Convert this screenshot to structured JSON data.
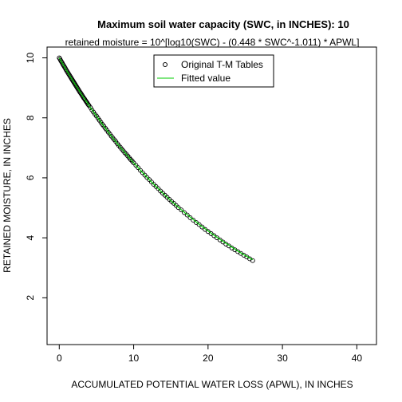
{
  "chart_data": {
    "type": "scatter",
    "title": "Maximum soil water capacity (SWC, in INCHES): 10",
    "subtitle": "retained moisture = 10^[log10(SWC) - (0.448 * SWC^-1.011) * APWL]",
    "xlabel": "ACCUMULATED POTENTIAL WATER LOSS (APWL), IN INCHES",
    "ylabel": "RETAINED MOISTURE, IN INCHES",
    "xlim": [
      -1.64,
      42.64
    ],
    "ylim": [
      0.44,
      10.36
    ],
    "xticks": [
      0,
      10,
      20,
      30,
      40
    ],
    "yticks": [
      2,
      4,
      6,
      8,
      10
    ],
    "legend_position": "top-center",
    "series": [
      {
        "name": "Original T-M Tables",
        "kind": "points",
        "color": "#000000",
        "x": [
          0,
          0.1,
          0.2,
          0.3,
          0.4,
          0.5,
          0.6,
          0.7,
          0.8,
          0.9,
          1.0,
          1.1,
          1.2,
          1.3,
          1.4,
          1.5,
          1.6,
          1.7,
          1.8,
          1.9,
          2.0,
          2.1,
          2.2,
          2.3,
          2.4,
          2.5,
          2.6,
          2.7,
          2.8,
          2.9,
          3.0,
          3.1,
          3.2,
          3.3,
          3.4,
          3.5,
          3.6,
          3.7,
          3.8,
          3.9,
          4.0,
          4.2,
          4.4,
          4.6,
          4.8,
          5.0,
          5.2,
          5.4,
          5.6,
          5.8,
          6.0,
          6.2,
          6.4,
          6.6,
          6.8,
          7.0,
          7.2,
          7.4,
          7.6,
          7.8,
          8.0,
          8.2,
          8.4,
          8.6,
          8.8,
          9.0,
          9.2,
          9.4,
          9.6,
          9.8,
          10.0,
          10.3,
          10.6,
          10.9,
          11.2,
          11.5,
          11.8,
          12.1,
          12.4,
          12.7,
          13.0,
          13.3,
          13.6,
          13.9,
          14.2,
          14.5,
          14.8,
          15.1,
          15.4,
          15.7,
          16.0,
          16.4,
          16.8,
          17.2,
          17.6,
          18.0,
          18.4,
          18.8,
          19.2,
          19.6,
          20.0,
          20.4,
          20.8,
          21.2,
          21.6,
          22.0,
          22.4,
          22.8,
          23.2,
          23.6,
          24.0,
          24.4,
          24.8,
          25.2,
          25.6,
          26.0
        ],
        "y": [
          10.0,
          9.96,
          9.91,
          9.87,
          9.83,
          9.78,
          9.74,
          9.7,
          9.66,
          9.61,
          9.57,
          9.53,
          9.49,
          9.45,
          9.41,
          9.37,
          9.33,
          9.29,
          9.25,
          9.21,
          9.17,
          9.13,
          9.09,
          9.05,
          9.01,
          8.97,
          8.93,
          8.89,
          8.85,
          8.82,
          8.78,
          8.74,
          8.7,
          8.66,
          8.63,
          8.59,
          8.55,
          8.52,
          8.48,
          8.44,
          8.41,
          8.34,
          8.26,
          8.19,
          8.12,
          8.06,
          7.99,
          7.92,
          7.85,
          7.78,
          7.72,
          7.65,
          7.59,
          7.52,
          7.46,
          7.39,
          7.33,
          7.27,
          7.21,
          7.14,
          7.08,
          7.02,
          6.96,
          6.9,
          6.84,
          6.79,
          6.73,
          6.67,
          6.61,
          6.56,
          6.5,
          6.42,
          6.34,
          6.25,
          6.17,
          6.09,
          6.01,
          5.94,
          5.86,
          5.78,
          5.71,
          5.64,
          5.56,
          5.49,
          5.42,
          5.35,
          5.28,
          5.21,
          5.15,
          5.08,
          5.01,
          4.93,
          4.84,
          4.76,
          4.67,
          4.59,
          4.51,
          4.44,
          4.36,
          4.28,
          4.21,
          4.14,
          4.07,
          4.0,
          3.93,
          3.86,
          3.79,
          3.73,
          3.66,
          3.6,
          3.54,
          3.48,
          3.42,
          3.36,
          3.3,
          3.24
        ]
      },
      {
        "name": "Fitted value",
        "kind": "line",
        "color": "#00cc00",
        "x": [
          0,
          1,
          2,
          3,
          4,
          5,
          6,
          7,
          8,
          9,
          10,
          11,
          12,
          13,
          14,
          15,
          16,
          17,
          18,
          19,
          20,
          21,
          22,
          23,
          24,
          25,
          26
        ],
        "y": [
          10.0,
          9.57,
          9.17,
          8.78,
          8.41,
          8.06,
          7.72,
          7.39,
          7.08,
          6.79,
          6.5,
          6.23,
          5.96,
          5.71,
          5.47,
          5.24,
          5.02,
          4.81,
          4.61,
          4.41,
          4.23,
          4.05,
          3.88,
          3.72,
          3.56,
          3.41,
          3.27
        ]
      }
    ]
  }
}
